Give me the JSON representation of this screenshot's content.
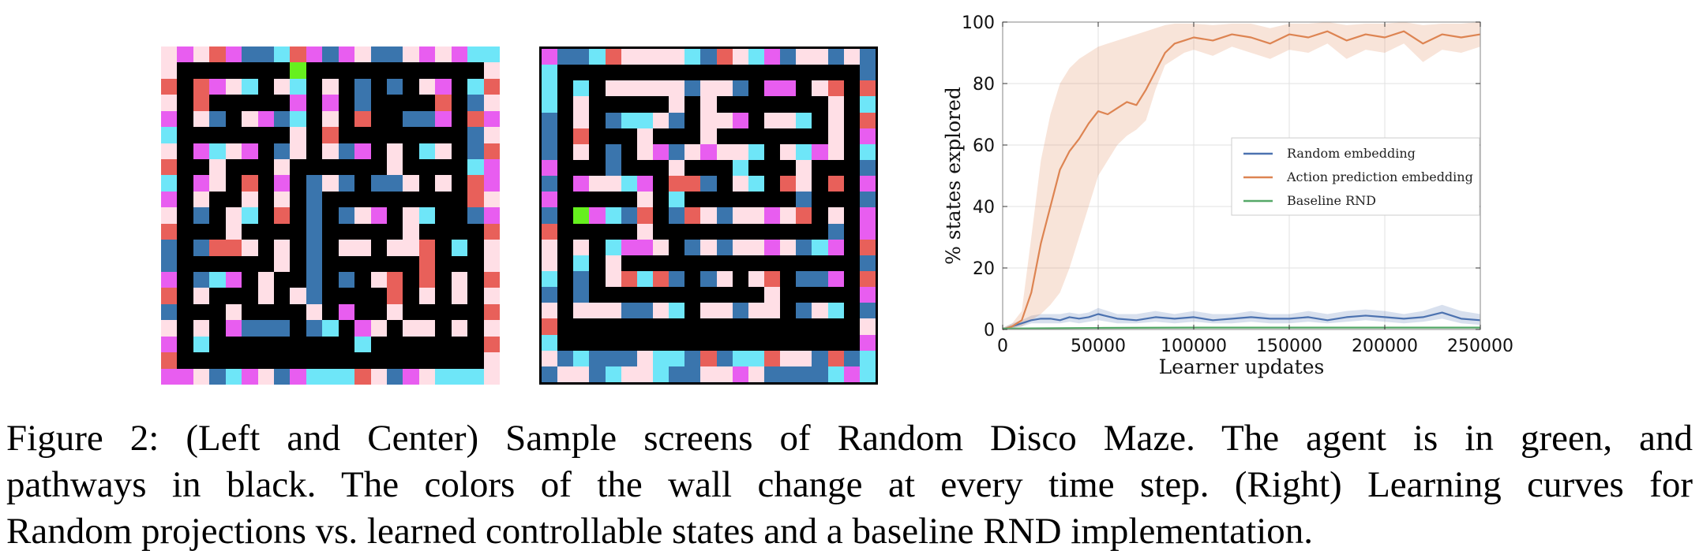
{
  "figure": {
    "caption_lines": [
      "Figure 2: (Left and Center) Sample screens of Random Disco Maze. The agent is in green, and",
      "pathways in black. The colors of the wall change at every time step. (Right) Learning curves for",
      "Random projections vs. learned controllable states and a baseline RND implementation."
    ]
  },
  "mazes": {
    "palette": {
      "K": "#000000",
      "G": "#66f01e",
      "P": "#ffdfe6",
      "C": "#6ee6f8",
      "M": "#e85df0",
      "R": "#e8605a",
      "B": "#3a75ad"
    },
    "left": [
      "PMPRMBBCRMBMPBBPMPMCC",
      "PKKKKKKKGKKKKKKKKKKKP",
      "RKRMPCKPCKPKBKBKPMKCR",
      "PKRKKKKKMKMKBKKKKRKBP",
      "MKPBKPMBCKPKRKKBBMKRM",
      "CKKKKKKKPKRKKKKKKKKBP",
      "PKMCPMKBPKPBMKPKCPKBR",
      "RKKPKKKPKKKKKKPKKKKCM",
      "CKMPKRKMKBPBKBBPKPKRM",
      "MKPKKPKPKBKKKKKKKKKRP",
      "PKBKPCKRKBKBPMKPCKKBM",
      "RKKKPKKKKBKKKKKPKKKKR",
      "BKBRRPKPKBKPPKPPRKCKP",
      "BKKKKKKPKBKKKKKKRKKKP",
      "MKBCMKPKKBKBKPRKRKPKR",
      "RKPKKKPKPBKKKKRKPKPKP",
      "BKKKPKKKKPKMKKPKKKKKR",
      "PKPKMBBBKBCKMPKPPKPKP",
      "MKCKKKKKKKKKCKKKKKKKR",
      "RKKKKKKKKKKKKKKKKKKKP",
      "MMPBCMPBMCCCRPBMPCCCP"
    ],
    "center": [
      "MBBCRPPPPCBRPCMBPPBPB",
      "CKKKKKKKKKKKKKKKKKKKB",
      "CKCKPPPPPBPPBKMMKPRKR",
      "CKPKKKKKPKPKKKKKKKPKC",
      "BKPKBCCPBKPPMKPPCKPKR",
      "BKRKKKPKKKPKKKKKKKPKM",
      "BKPKBKPMBPMPPCKPCMPKC",
      "MKKKBKKKPKKKCKKKPKKKB",
      "BKMPPCMKRRBKPCKRPKRKM",
      "MKKKKKPKCKKKKKKKBKKKB",
      "BKGMCBRKBRPBPPMPRKPKM",
      "RKKKKKPKKKKKKKKKKKBKM",
      "PKPKCMMPKBPBPPMPBCMKR",
      "PKCKPKKKKKKKKKKKKKKKB",
      "CKBKPRCRBKBPKPRKBBMKR",
      "BKBKKKKKKKKKKKPKKKKKM",
      "PKPPPBBPCKPPBPPKBPCKB",
      "RKKKKKKKKKKKKKKKKKKKP",
      "CKKKKKKKKKKKKKKKKKKKM",
      "PBCBBBPCCBRBCCRPPBRBC",
      "BPPBCPPCBBPPMPBBBBCMC"
    ]
  },
  "chart_data": {
    "type": "line",
    "xlabel": "Learner updates",
    "ylabel": "% states explored",
    "xlim": [
      0,
      250000
    ],
    "ylim": [
      0,
      100
    ],
    "xticks": [
      0,
      50000,
      100000,
      150000,
      200000,
      250000
    ],
    "xtick_labels": [
      "0",
      "50000",
      "100000",
      "150000",
      "200000",
      "250000"
    ],
    "yticks": [
      0,
      20,
      40,
      60,
      80,
      100
    ],
    "ytick_labels": [
      "0",
      "20",
      "40",
      "60",
      "80",
      "100"
    ],
    "grid": true,
    "legend": {
      "location": "center-right",
      "entries": [
        "Random embedding",
        "Action prediction embedding",
        "Baseline RND"
      ]
    },
    "series": [
      {
        "name": "Random embedding",
        "color": "#4c72b0",
        "x": [
          0,
          5000,
          10000,
          15000,
          20000,
          25000,
          30000,
          35000,
          40000,
          45000,
          50000,
          60000,
          70000,
          80000,
          90000,
          100000,
          110000,
          120000,
          130000,
          140000,
          150000,
          160000,
          170000,
          180000,
          190000,
          200000,
          210000,
          220000,
          230000,
          240000,
          250000
        ],
        "y": [
          0,
          1,
          2,
          3,
          3.5,
          3.5,
          3,
          4,
          3.5,
          4,
          5,
          3.5,
          3,
          4,
          3.5,
          4,
          3,
          3.5,
          4,
          3.5,
          3.5,
          4,
          3,
          4,
          4.5,
          4,
          3.5,
          4,
          5.5,
          3.5,
          3
        ],
        "band_lower": [
          0,
          0.5,
          1,
          2,
          2,
          2,
          2,
          2.5,
          2,
          2.5,
          3,
          2,
          2,
          2.5,
          2,
          2.5,
          2,
          2,
          2.5,
          2,
          2,
          2.5,
          2,
          2.5,
          3,
          2.5,
          2,
          2.5,
          3.5,
          2,
          1.5
        ],
        "band_upper": [
          0.5,
          2,
          3,
          4.5,
          5,
          5,
          5,
          5.5,
          5,
          5.5,
          7,
          5,
          5,
          6,
          5,
          6,
          5,
          5,
          6,
          5,
          5,
          6,
          5,
          6,
          6.5,
          6,
          5,
          6,
          8,
          6,
          5
        ]
      },
      {
        "name": "Action prediction embedding",
        "color": "#dd8452",
        "x": [
          0,
          5000,
          10000,
          15000,
          20000,
          25000,
          30000,
          35000,
          40000,
          45000,
          50000,
          55000,
          60000,
          65000,
          70000,
          75000,
          80000,
          85000,
          90000,
          95000,
          100000,
          110000,
          120000,
          130000,
          140000,
          150000,
          160000,
          170000,
          180000,
          190000,
          200000,
          210000,
          220000,
          230000,
          240000,
          250000
        ],
        "y": [
          0,
          1,
          3,
          12,
          28,
          40,
          52,
          58,
          62,
          67,
          71,
          70,
          72,
          74,
          73,
          78,
          84,
          90,
          93,
          94,
          95,
          94,
          96,
          95,
          93,
          96,
          95,
          97,
          94,
          96,
          95,
          97,
          93,
          96,
          95,
          96
        ],
        "band_lower": [
          0,
          0.5,
          1,
          3,
          5,
          8,
          12,
          20,
          30,
          40,
          50,
          55,
          60,
          63,
          65,
          68,
          78,
          86,
          88,
          90,
          91,
          89,
          92,
          90,
          88,
          91,
          90,
          93,
          88,
          91,
          90,
          93,
          87,
          91,
          90,
          92
        ],
        "band_upper": [
          0.5,
          2,
          6,
          30,
          55,
          70,
          80,
          85,
          88,
          90,
          92,
          93,
          94,
          95,
          96,
          97,
          98,
          99,
          99.5,
          99.5,
          99.5,
          99,
          99.5,
          99.5,
          98,
          99.5,
          99.5,
          100,
          99,
          99.5,
          99.5,
          100,
          99,
          99.5,
          99.5,
          100
        ]
      },
      {
        "name": "Baseline RND",
        "color": "#55a868",
        "x": [
          0,
          50000,
          100000,
          150000,
          200000,
          250000
        ],
        "y": [
          0.3,
          0.5,
          0.6,
          0.6,
          0.6,
          0.6
        ],
        "band_lower": [
          0,
          0.2,
          0.3,
          0.3,
          0.3,
          0.3
        ],
        "band_upper": [
          0.6,
          0.8,
          0.9,
          0.9,
          0.9,
          0.9
        ]
      }
    ]
  }
}
